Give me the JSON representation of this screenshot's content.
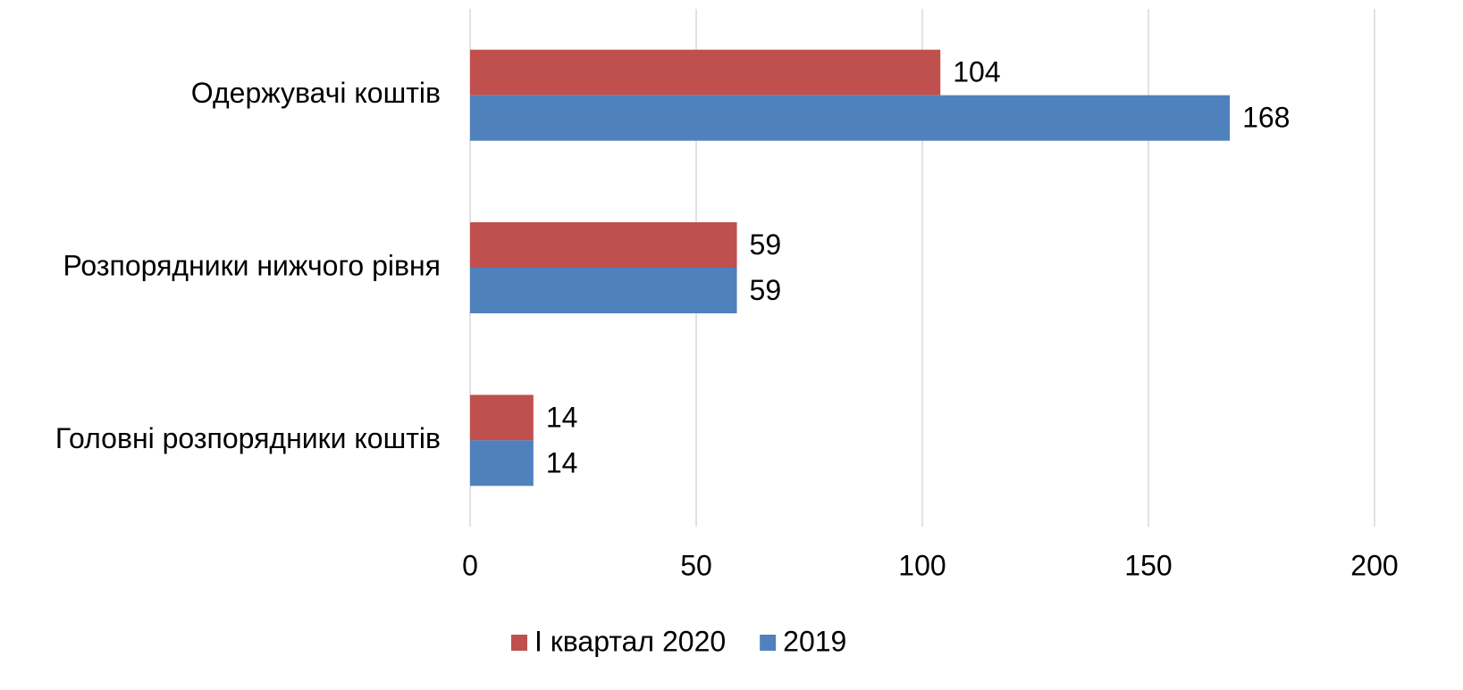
{
  "chart_data": {
    "type": "bar",
    "orientation": "horizontal",
    "categories": [
      "Одержувачі коштів",
      "Розпорядники нижчого рівня",
      "Головні розпорядники коштів"
    ],
    "series": [
      {
        "name": "І квартал 2020",
        "color": "#c0504d",
        "values": [
          104,
          59,
          14
        ]
      },
      {
        "name": "2019",
        "color": "#4f81bd",
        "values": [
          168,
          59,
          14
        ]
      }
    ],
    "xlim": [
      0,
      200
    ],
    "xticks": [
      0,
      50,
      100,
      150,
      200
    ],
    "grid": true,
    "legend": "bottom"
  }
}
